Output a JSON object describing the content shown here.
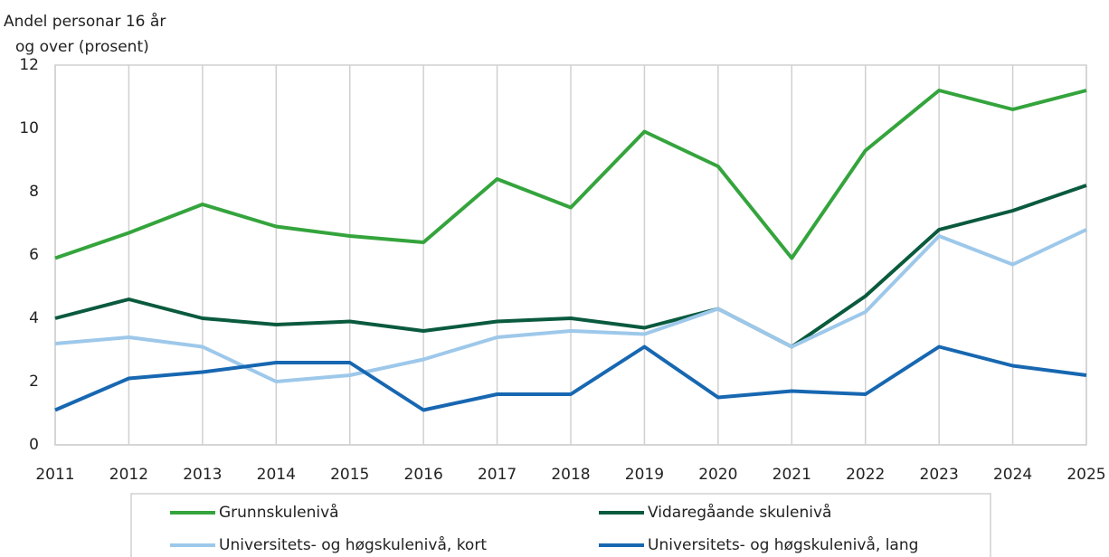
{
  "chart_data": {
    "type": "line",
    "ylabel": [
      "Andel personar 16 år",
      "og over (prosent)"
    ],
    "x": [
      2011,
      2012,
      2013,
      2014,
      2015,
      2016,
      2017,
      2018,
      2019,
      2020,
      2021,
      2022,
      2023,
      2024,
      2025
    ],
    "xlim": [
      2011,
      2025
    ],
    "xticks": [
      2011,
      2012,
      2013,
      2014,
      2015,
      2016,
      2017,
      2018,
      2019,
      2020,
      2021,
      2022,
      2023,
      2024,
      2025
    ],
    "ylim": [
      0,
      12
    ],
    "yticks": [
      0,
      2,
      4,
      6,
      8,
      10,
      12
    ],
    "grid": "x",
    "legend": "bottom",
    "series": [
      {
        "name": "Grunnskulenivå",
        "color": "#34a43c",
        "values": [
          5.9,
          6.7,
          7.6,
          6.9,
          6.6,
          6.4,
          8.4,
          7.5,
          9.9,
          8.8,
          5.9,
          9.3,
          11.2,
          10.6,
          11.2
        ]
      },
      {
        "name": "Vidaregåande skulenivå",
        "color": "#0a5a3e",
        "values": [
          4.0,
          4.6,
          4.0,
          3.8,
          3.9,
          3.6,
          3.9,
          4.0,
          3.7,
          4.3,
          3.1,
          4.7,
          6.8,
          7.4,
          8.2
        ]
      },
      {
        "name": "Universitets- og høgskulenivå, kort",
        "color": "#9dc8ea",
        "values": [
          3.2,
          3.4,
          3.1,
          2.0,
          2.2,
          2.7,
          3.4,
          3.6,
          3.5,
          4.3,
          3.1,
          4.2,
          6.6,
          5.7,
          6.8
        ]
      },
      {
        "name": "Universitets- og høgskulenivå, lang",
        "color": "#1767b1",
        "values": [
          1.1,
          2.1,
          2.3,
          2.6,
          2.6,
          1.1,
          1.6,
          1.6,
          3.1,
          1.5,
          1.7,
          1.6,
          3.1,
          2.5,
          2.2
        ]
      }
    ]
  }
}
